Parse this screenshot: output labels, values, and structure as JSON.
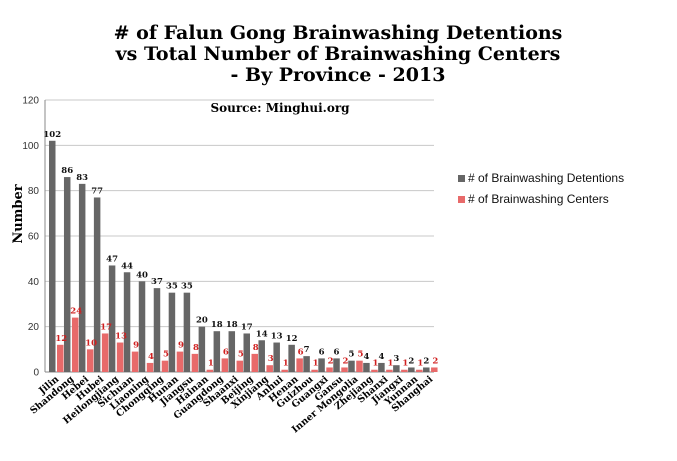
{
  "chart_data": {
    "type": "bar",
    "title_lines": [
      "# of Falun Gong Brainwashing Detentions",
      "vs Total Number of Brainwashing Centers",
      "- By Province - 2013"
    ],
    "subtitle": "Source: Minghui.org",
    "ylabel": "Number",
    "xlabel": "",
    "ylim": [
      0,
      120
    ],
    "yticks": [
      0,
      20,
      40,
      60,
      80,
      100,
      120
    ],
    "grid": true,
    "legend_position": "right",
    "categories": [
      "Jilin",
      "Shandong",
      "Hebei",
      "Hubei",
      "Heilongjiang",
      "Sichuan",
      "Liaoning",
      "Chongqing",
      "Hunan",
      "Jiangsu",
      "Hainan",
      "Guangdong",
      "Shaanxi",
      "Beijing",
      "Xinjiang",
      "Anhui",
      "Henan",
      "Guizhou",
      "Guangxi",
      "Gansu",
      "Inner Mongolia",
      "Zhejiang",
      "Shanxi",
      "Jiangxi",
      "Yunnan",
      "Shanghai"
    ],
    "series": [
      {
        "name": "# of Brainwashing Detentions",
        "color": "#666666",
        "values": [
          102,
          86,
          83,
          77,
          47,
          44,
          40,
          37,
          35,
          35,
          20,
          18,
          18,
          17,
          14,
          13,
          12,
          7,
          6,
          6,
          5,
          4,
          4,
          3,
          2,
          2
        ]
      },
      {
        "name": "# of Brainwashing Centers",
        "color": "#e86a6a",
        "label_color": "#d02020",
        "values": [
          12,
          24,
          10,
          17,
          13,
          9,
          4,
          5,
          9,
          8,
          1,
          6,
          5,
          8,
          3,
          1,
          6,
          1,
          2,
          2,
          5,
          1,
          1,
          1,
          1,
          2
        ]
      }
    ]
  }
}
